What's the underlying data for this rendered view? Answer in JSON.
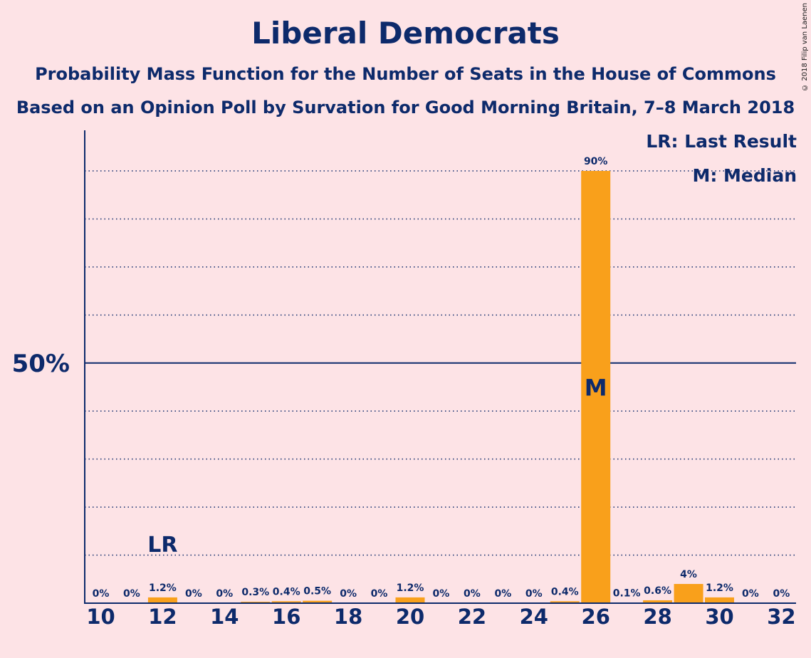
{
  "title": "Liberal Democrats",
  "subtitle1": "Probability Mass Function for the Number of Seats in the House of Commons",
  "subtitle2": "Based on an Opinion Poll by Survation for Good Morning Britain, 7–8 March 2018",
  "copyright": "© 2018 Filip van Laenen",
  "legend": {
    "last_result": "LR: Last Result",
    "median": "M: Median"
  },
  "markers": {
    "last_result_label": "LR",
    "median_label": "M"
  },
  "colors": {
    "background": "#fde3e6",
    "bar": "#f9a01b",
    "text": "#0d2a6b"
  },
  "chart_data": {
    "type": "bar",
    "x": [
      10,
      11,
      12,
      13,
      14,
      15,
      16,
      17,
      18,
      19,
      20,
      21,
      22,
      23,
      24,
      25,
      26,
      27,
      28,
      29,
      30,
      31,
      32
    ],
    "values": [
      0,
      0,
      1.2,
      0,
      0,
      0.3,
      0.4,
      0.5,
      0,
      0,
      1.2,
      0,
      0,
      0,
      0,
      0.4,
      90,
      0.1,
      0.6,
      4,
      1.2,
      0,
      0
    ],
    "value_labels": [
      "0%",
      "0%",
      "1.2%",
      "0%",
      "0%",
      "0.3%",
      "0.4%",
      "0.5%",
      "0%",
      "0%",
      "1.2%",
      "0%",
      "0%",
      "0%",
      "0%",
      "0.4%",
      "90%",
      "0.1%",
      "0.6%",
      "4%",
      "1.2%",
      "0%",
      "0%"
    ],
    "x_tick_labels": [
      "10",
      "12",
      "14",
      "16",
      "18",
      "20",
      "22",
      "24",
      "26",
      "28",
      "30",
      "32"
    ],
    "x_ticks": [
      10,
      12,
      14,
      16,
      18,
      20,
      22,
      24,
      26,
      28,
      30,
      32
    ],
    "y_tick_label": "50%",
    "y_major": 50,
    "ylim": [
      0,
      100
    ],
    "y_gridlines": [
      10,
      20,
      30,
      40,
      60,
      70,
      80,
      90
    ],
    "last_result": 12,
    "median": 26,
    "grid": true
  }
}
